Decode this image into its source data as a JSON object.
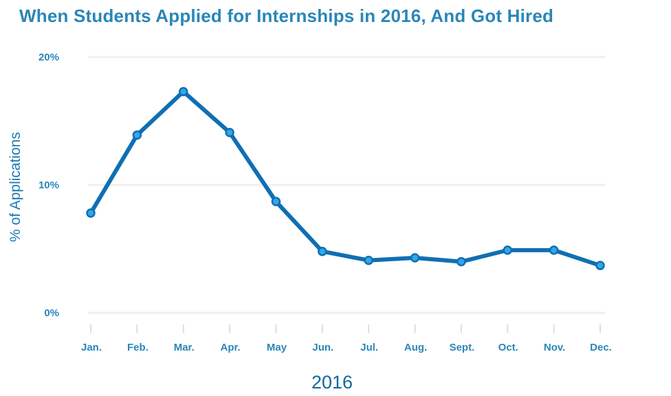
{
  "title": "When Students Applied for Internships in 2016, And Got Hired",
  "colors": {
    "title": "#2a86b8",
    "line": "#0f6fb3",
    "marker_fill": "#34a6e6",
    "gridline": "#efefef",
    "tick_label": "#2a86b8"
  },
  "chart_data": {
    "type": "line",
    "title": "When Students Applied for Internships in 2016, And Got Hired",
    "xlabel": "2016",
    "ylabel": "% of Applications",
    "categories": [
      "Jan.",
      "Feb.",
      "Mar.",
      "Apr.",
      "May",
      "Jun.",
      "Jul.",
      "Aug.",
      "Sept.",
      "Oct.",
      "Nov.",
      "Dec."
    ],
    "series": [
      {
        "name": "% of Applications",
        "values": [
          7.8,
          13.9,
          17.3,
          14.1,
          8.7,
          4.8,
          4.1,
          4.3,
          4.0,
          4.9,
          4.9,
          3.7
        ]
      }
    ],
    "yticks": [
      "0%",
      "10%",
      "20%"
    ],
    "ylim": [
      0,
      20
    ],
    "grid": true,
    "legend": "none"
  }
}
